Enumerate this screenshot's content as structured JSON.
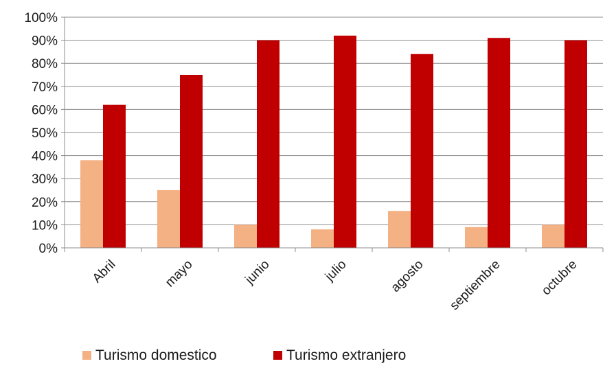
{
  "chart_data": {
    "type": "bar",
    "title": "",
    "xlabel": "",
    "ylabel": "",
    "categories": [
      "Abril",
      "mayo",
      "junio",
      "julio",
      "agosto",
      "septiembre",
      "octubre"
    ],
    "series": [
      {
        "name": "Turismo domestico",
        "color": "#F4B183",
        "values": [
          38,
          25,
          10,
          8,
          16,
          9,
          10
        ]
      },
      {
        "name": "Turismo extranjero",
        "color": "#C00000",
        "values": [
          62,
          75,
          90,
          92,
          84,
          91,
          90
        ]
      }
    ],
    "ylim": [
      0,
      100
    ],
    "yticks": [
      "0%",
      "10%",
      "20%",
      "30%",
      "40%",
      "50%",
      "60%",
      "70%",
      "80%",
      "90%",
      "100%"
    ],
    "grid": true,
    "legend_position": "bottom"
  }
}
